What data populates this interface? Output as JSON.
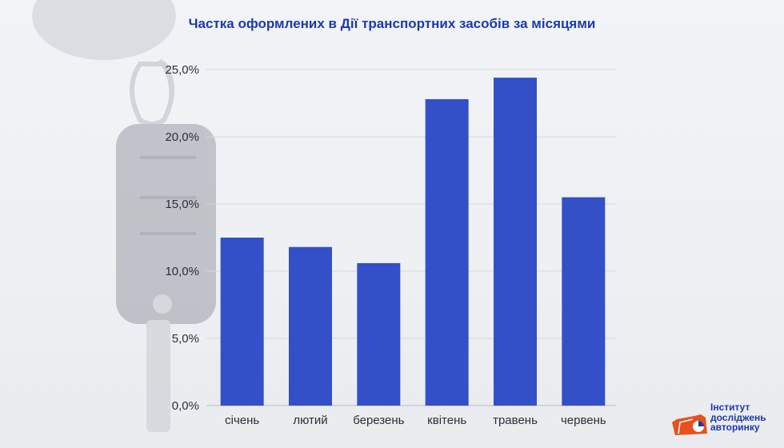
{
  "chart_data": {
    "type": "bar",
    "title": "Частка оформлених в Дії транспортних засобів за місяцями",
    "categories": [
      "січень",
      "лютий",
      "березень",
      "квітень",
      "травень",
      "червень"
    ],
    "values": [
      12.5,
      11.8,
      10.6,
      22.8,
      24.4,
      15.5
    ],
    "ylim": [
      0,
      25
    ],
    "yticks": [
      "0,0%",
      "5,0%",
      "10,0%",
      "15,0%",
      "20,0%",
      "25,0%"
    ],
    "ytick_values": [
      0,
      5,
      10,
      15,
      20,
      25
    ],
    "grid": true,
    "bar_color": "#3350c8"
  },
  "brand": {
    "line1": "Інститут",
    "line2": "досліджень",
    "line3": "авторинку",
    "accent": "#e8501e"
  }
}
